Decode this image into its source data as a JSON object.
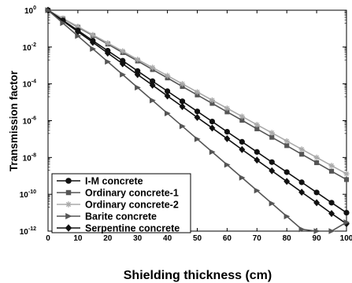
{
  "chart_data": {
    "type": "line",
    "xlabel": "Shielding thickness (cm)",
    "ylabel": "Transmission factor",
    "xlim": [
      0,
      100
    ],
    "ylim": [
      1e-12,
      1
    ],
    "yscale": "log",
    "x_ticks": [
      "0",
      "10",
      "20",
      "30",
      "40",
      "50",
      "60",
      "70",
      "80",
      "90",
      "100"
    ],
    "y_ticks": [
      {
        "base": "10",
        "exp": "0"
      },
      {
        "base": "10",
        "exp": "-2"
      },
      {
        "base": "10",
        "exp": "-4"
      },
      {
        "base": "10",
        "exp": "-6"
      },
      {
        "base": "10",
        "exp": "-8"
      },
      {
        "base": "10",
        "exp": "-10"
      },
      {
        "base": "10",
        "exp": "-12"
      }
    ],
    "legend_position": "bottom-left",
    "x": [
      0,
      5,
      10,
      15,
      20,
      25,
      30,
      35,
      40,
      45,
      50,
      55,
      60,
      65,
      70,
      75,
      80,
      85,
      90,
      95,
      100
    ],
    "series": [
      {
        "name": "I-M concrete",
        "color": "#111111",
        "marker": "circle",
        "values": [
          1,
          0.28,
          0.08,
          0.022,
          0.0063,
          0.0018,
          0.0005,
          0.00014,
          4e-05,
          1.13e-05,
          3.2e-06,
          9e-07,
          2.5e-07,
          7.1e-08,
          2e-08,
          5.6e-09,
          1.6e-09,
          4.5e-10,
          1.26e-10,
          3.5e-11,
          1e-11
        ]
      },
      {
        "name": "Ordinary concrete-1",
        "color": "#555555",
        "marker": "square",
        "values": [
          1,
          0.35,
          0.12,
          0.042,
          0.0145,
          0.005,
          0.00175,
          0.0006,
          0.00021,
          7.2e-05,
          2.5e-05,
          8.7e-06,
          3e-06,
          1.05e-06,
          3.6e-07,
          1.25e-07,
          4.4e-08,
          1.5e-08,
          5.2e-09,
          1.8e-09,
          6.3e-10
        ]
      },
      {
        "name": "Ordinary concrete-2",
        "color": "#aaaaaa",
        "marker": "star",
        "values": [
          1,
          0.36,
          0.13,
          0.046,
          0.0165,
          0.006,
          0.0021,
          0.00077,
          0.00028,
          0.0001,
          3.6e-05,
          1.3e-05,
          4.7e-06,
          1.7e-06,
          6e-07,
          2.2e-07,
          7.8e-08,
          2.8e-08,
          1e-08,
          3.6e-09,
          1.3e-09
        ]
      },
      {
        "name": "Barite concrete",
        "color": "#555555",
        "marker": "triangle-right",
        "values": [
          1,
          0.2,
          0.04,
          0.008,
          0.0016,
          0.00032,
          6.3e-05,
          1.26e-05,
          2.5e-06,
          5e-07,
          1e-07,
          2e-08,
          4e-09,
          8e-10,
          1.6e-10,
          3.2e-11,
          6.3e-12,
          1.26e-12,
          2.5e-13,
          5e-14,
          3e-12
        ]
      },
      {
        "name": "Serpentine concrete",
        "color": "#111111",
        "marker": "diamond",
        "values": [
          1,
          0.26,
          0.068,
          0.018,
          0.0047,
          0.00123,
          0.00032,
          8.5e-05,
          2.2e-05,
          5.8e-06,
          1.5e-06,
          4e-07,
          1.05e-07,
          2.7e-08,
          7.2e-09,
          1.9e-09,
          5e-10,
          1.3e-10,
          3.5e-11,
          9e-12,
          2.5e-12
        ]
      }
    ]
  }
}
